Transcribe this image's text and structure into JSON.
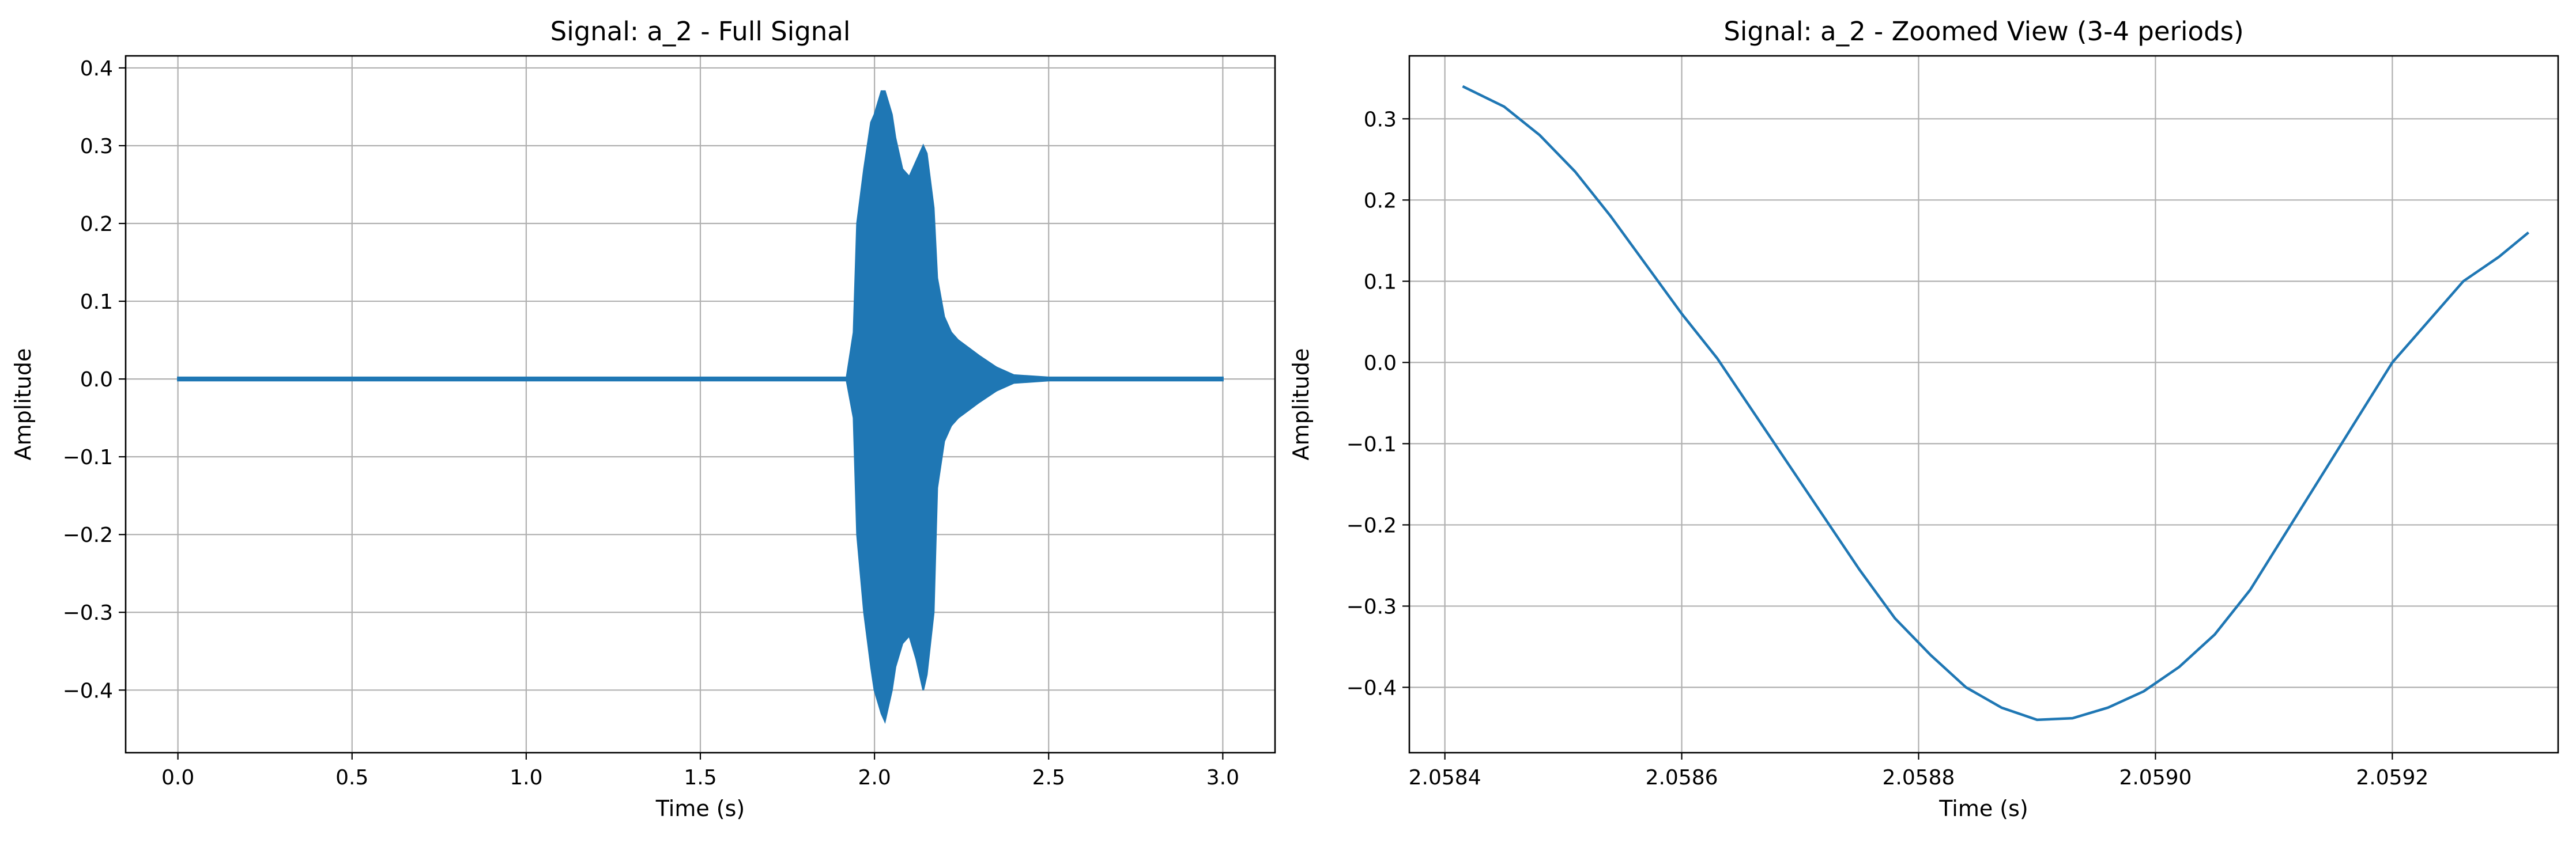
{
  "chart_data": [
    {
      "type": "line",
      "title": "Signal: a_2 - Full Signal",
      "xlabel": "Time (s)",
      "ylabel": "Amplitude",
      "xlim": [
        -0.15,
        3.15
      ],
      "ylim": [
        -0.4805,
        0.4155
      ],
      "xticks": [
        0.0,
        0.5,
        1.0,
        1.5,
        2.0,
        2.5,
        3.0
      ],
      "xtick_labels": [
        "0.0",
        "0.5",
        "1.0",
        "1.5",
        "2.0",
        "2.5",
        "3.0"
      ],
      "yticks": [
        -0.4,
        -0.3,
        -0.2,
        -0.1,
        0.0,
        0.1,
        0.2,
        0.3,
        0.4
      ],
      "ytick_labels": [
        "−0.4",
        "−0.3",
        "−0.2",
        "−0.1",
        "0.0",
        "0.1",
        "0.2",
        "0.3",
        "0.4"
      ],
      "grid": true,
      "color": "#1f77b4",
      "series": [
        {
          "signal_range": [
            0.0,
            3.0
          ],
          "envelope": {
            "t": [
              0.0,
              1.92,
              1.94,
              1.95,
              1.97,
              1.99,
              2.0,
              2.02,
              2.03,
              2.05,
              2.06,
              2.08,
              2.1,
              2.12,
              2.14,
              2.15,
              2.17,
              2.18,
              2.2,
              2.22,
              2.24,
              2.27,
              2.3,
              2.35,
              2.4,
              2.5,
              3.0
            ],
            "upper": [
              0.002,
              0.002,
              0.06,
              0.2,
              0.27,
              0.33,
              0.34,
              0.37,
              0.37,
              0.34,
              0.31,
              0.27,
              0.26,
              0.28,
              0.3,
              0.29,
              0.22,
              0.13,
              0.08,
              0.06,
              0.05,
              0.04,
              0.03,
              0.015,
              0.005,
              0.002,
              0.002
            ],
            "lower": [
              -0.002,
              -0.002,
              -0.05,
              -0.2,
              -0.3,
              -0.37,
              -0.4,
              -0.43,
              -0.44,
              -0.4,
              -0.37,
              -0.34,
              -0.33,
              -0.36,
              -0.4,
              -0.38,
              -0.3,
              -0.14,
              -0.08,
              -0.06,
              -0.05,
              -0.04,
              -0.03,
              -0.015,
              -0.005,
              -0.002,
              -0.002
            ]
          }
        }
      ]
    },
    {
      "type": "line",
      "title": "Signal: a_2 - Zoomed View (3-4 periods)",
      "xlabel": "Time (s)",
      "ylabel": "Amplitude",
      "xlim": [
        2.05837,
        2.05934
      ],
      "ylim": [
        -0.4805,
        0.3775
      ],
      "xticks": [
        2.0584,
        2.0586,
        2.0588,
        2.059,
        2.0592
      ],
      "xtick_labels": [
        "2.0584",
        "2.0586",
        "2.0588",
        "2.0590",
        "2.0592"
      ],
      "yticks": [
        -0.4,
        -0.3,
        -0.2,
        -0.1,
        0.0,
        0.1,
        0.2,
        0.3
      ],
      "ytick_labels": [
        "−0.4",
        "−0.3",
        "−0.2",
        "−0.1",
        "0.0",
        "0.1",
        "0.2",
        "0.3"
      ],
      "grid": true,
      "color": "#1f77b4",
      "series": [
        {
          "x": [
            2.058415,
            2.05845,
            2.05848,
            2.05851,
            2.05854,
            2.05857,
            2.0586,
            2.05863,
            2.05866,
            2.05869,
            2.05872,
            2.05875,
            2.05878,
            2.05881,
            2.05884,
            2.05887,
            2.0589,
            2.05893,
            2.05896,
            2.05899,
            2.05902,
            2.05905,
            2.05908,
            2.05911,
            2.05914,
            2.05917,
            2.0592,
            2.05923,
            2.05926,
            2.05929,
            2.059315
          ],
          "y": [
            0.34,
            0.315,
            0.28,
            0.235,
            0.18,
            0.12,
            0.06,
            0.005,
            -0.06,
            -0.125,
            -0.19,
            -0.255,
            -0.315,
            -0.36,
            -0.4,
            -0.425,
            -0.44,
            -0.438,
            -0.425,
            -0.405,
            -0.375,
            -0.335,
            -0.28,
            -0.21,
            -0.14,
            -0.07,
            0.0,
            0.05,
            0.1,
            0.13,
            0.16
          ]
        }
      ]
    }
  ]
}
